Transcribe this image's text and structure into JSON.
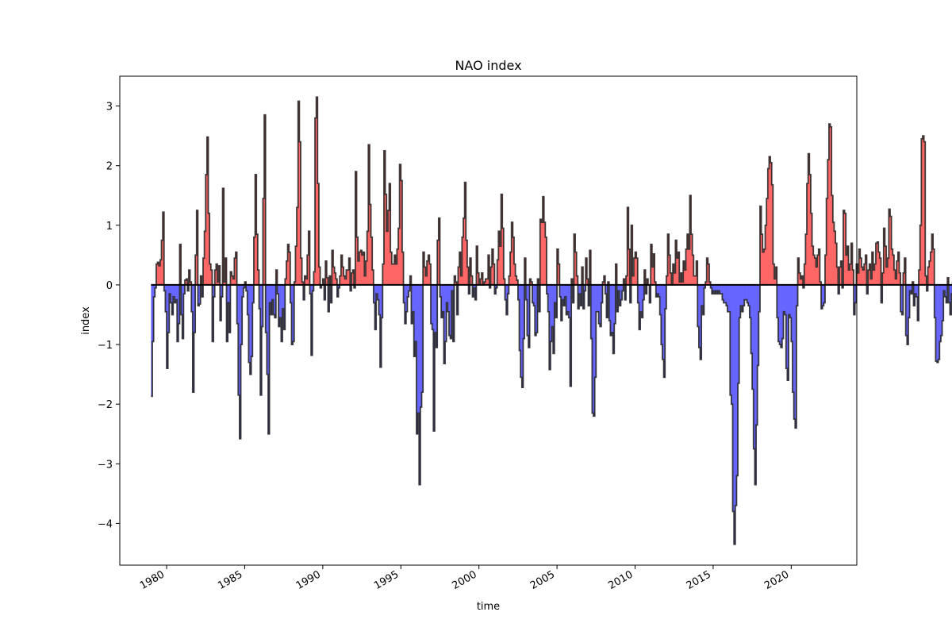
{
  "chart_data": {
    "type": "area",
    "title": "NAO index",
    "xlabel": "time",
    "ylabel": "index",
    "x_start": "1979-01",
    "x_end": "2021-12",
    "xlim": [
      1977.0,
      2024.2
    ],
    "ylim": [
      -4.7,
      3.5
    ],
    "x_ticks": [
      1980,
      1985,
      1990,
      1995,
      2000,
      2005,
      2010,
      2015,
      2020
    ],
    "x_tick_labels": [
      "1980",
      "1985",
      "1990",
      "1995",
      "2000",
      "2005",
      "2010",
      "2015",
      "2020"
    ],
    "y_ticks": [
      -4,
      -3,
      -2,
      -1,
      0,
      1,
      2,
      3
    ],
    "y_tick_labels": [
      "−4",
      "−3",
      "−2",
      "−1",
      "0",
      "1",
      "2",
      "3"
    ],
    "grid": false,
    "legend": false,
    "positive_color": "#ff6666",
    "negative_color": "#6666ff",
    "line_color": "#222222",
    "monthly_values": [
      -1.87,
      -0.95,
      -0.2,
      -0.05,
      0.35,
      0.38,
      0.32,
      0.42,
      0.75,
      1.22,
      -0.1,
      -0.45,
      -1.4,
      -0.8,
      -0.15,
      -0.3,
      -0.5,
      -0.2,
      -0.3,
      -0.25,
      -0.95,
      -0.65,
      0.68,
      -0.5,
      -0.9,
      -0.15,
      0.08,
      0.1,
      -0.1,
      0.25,
      0.05,
      -0.45,
      -1.8,
      -0.8,
      0.5,
      1.25,
      -0.35,
      -0.32,
      0.15,
      -0.2,
      0.45,
      0.9,
      1.85,
      2.48,
      1.2,
      0.35,
      0.25,
      -0.95,
      -0.2,
      0.25,
      0.35,
      0.05,
      0.32,
      -0.6,
      -0.2,
      1.62,
      0.05,
      0.45,
      -0.95,
      -0.3,
      -0.8,
      0.22,
      0.15,
      0.1,
      0.45,
      0.55,
      -0.65,
      -1.85,
      -2.58,
      -1.0,
      -0.2,
      -0.05,
      0.05,
      -0.1,
      -0.5,
      -1.3,
      -1.5,
      -1.2,
      -0.3,
      0.8,
      1.85,
      0.85,
      0.25,
      -0.4,
      -1.85,
      -0.7,
      1.45,
      2.85,
      -0.8,
      -1.5,
      -2.5,
      -0.3,
      -0.5,
      -0.25,
      -0.5,
      -0.55,
      0.25,
      -0.15,
      -0.7,
      -0.55,
      -0.95,
      -0.4,
      -0.75,
      0.1,
      0.4,
      0.68,
      0.55,
      -0.3,
      -1.0,
      -0.95,
      0.05,
      0.65,
      1.3,
      3.08,
      2.4,
      0.45,
      0.05,
      -0.25,
      0.15,
      0.1,
      0.5,
      0.9,
      -0.15,
      -1.18,
      -0.1,
      0.22,
      2.8,
      3.15,
      1.7,
      0.3,
      -0.05,
      0.0,
      0.1,
      -0.25,
      0.4,
      0.12,
      -0.45,
      0.15,
      -0.3,
      0.58,
      0.3,
      0.2,
      0.1,
      -0.2,
      -0.05,
      0.15,
      0.5,
      0.3,
      0.15,
      0.1,
      0.25,
      0.25,
      0.45,
      -0.1,
      0.2,
      0.25,
      -0.05,
      1.9,
      0.8,
      0.4,
      0.55,
      0.58,
      0.5,
      0.55,
      0.15,
      0.4,
      0.9,
      2.35,
      1.35,
      0.8,
      0.25,
      -0.3,
      -0.75,
      -0.15,
      -0.25,
      -0.5,
      -1.38,
      -0.55,
      0.35,
      2.25,
      1.52,
      0.9,
      1.25,
      1.7,
      0.55,
      0.35,
      0.35,
      0.5,
      0.35,
      0.6,
      0.95,
      2.02,
      1.75,
      0.55,
      -0.3,
      -0.65,
      -0.45,
      -0.2,
      -0.1,
      0.15,
      -0.65,
      -0.45,
      -1.2,
      -0.95,
      -2.5,
      -2.15,
      -3.35,
      -2.05,
      -1.8,
      0.55,
      0.3,
      0.15,
      0.4,
      0.5,
      0.35,
      -0.65,
      -0.75,
      -2.45,
      -0.8,
      -1.05,
      0.75,
      1.12,
      -0.2,
      -0.55,
      -0.45,
      -1.32,
      -0.95,
      -0.3,
      -0.45,
      -0.85,
      -0.9,
      -0.1,
      -0.95,
      0.15,
      0.05,
      -0.5,
      0.3,
      0.55,
      0.15,
      0.8,
      1.12,
      1.72,
      0.75,
      0.3,
      -0.15,
      0.45,
      0.15,
      -0.2,
      -0.05,
      -0.25,
      0.65,
      0.2,
      0.0,
      0.1,
      0.2,
      0.0,
      0.05,
      0.1,
      0.1,
      0.5,
      -0.05,
      0.3,
      0.6,
      0.35,
      -0.15,
      -0.05,
      0.42,
      0.9,
      0.65,
      1.52,
      0.95,
      0.1,
      -0.25,
      -0.5,
      -0.15,
      0.15,
      0.55,
      1.05,
      0.8,
      0.35,
      0.15,
      0.08,
      -0.25,
      -1.1,
      -1.55,
      -1.72,
      -0.9,
      0.45,
      -0.25,
      -0.85,
      -1.05,
      0.1,
      0.05,
      -0.3,
      -0.35,
      -0.85,
      -0.8,
      0.1,
      -0.45,
      1.1,
      1.05,
      1.48,
      1.05,
      0.8,
      -0.15,
      -0.45,
      -1.42,
      -0.95,
      -0.7,
      -1.15,
      -0.3,
      -0.55,
      0.6,
      0.35,
      -0.2,
      -0.6,
      -0.25,
      -0.35,
      -0.2,
      -0.5,
      -0.45,
      -0.55,
      -1.7,
      0.1,
      -0.3,
      0.85,
      0.55,
      0.15,
      -0.4,
      -0.15,
      -0.35,
      0.3,
      -0.4,
      -0.1,
      0.45,
      0.1,
      -0.35,
      0.58,
      -0.9,
      -2.15,
      -2.2,
      -1.55,
      -0.45,
      -0.45,
      -0.65,
      -0.7,
      -0.3,
      0.05,
      0.15,
      -0.15,
      -0.55,
      0.05,
      -0.6,
      -0.85,
      -0.8,
      -1.15,
      -0.65,
      0.35,
      -0.45,
      -0.1,
      -0.35,
      -0.25,
      -0.1,
      0.1,
      -0.25,
      0.15,
      1.3,
      0.6,
      -0.3,
      1.0,
      0.15,
      0.45,
      0.55,
      0.45,
      -0.3,
      -0.75,
      -0.45,
      -0.55,
      -0.25,
      0.25,
      -0.15,
      0.1,
      0.0,
      -0.3,
      0.68,
      0.3,
      0.52,
      0.05,
      -0.2,
      -0.15,
      -0.2,
      -0.5,
      -1.0,
      -1.25,
      -1.55,
      -0.4,
      0.15,
      0.85,
      0.5,
      0.2,
      0.0,
      0.35,
      0.2,
      0.75,
      0.45,
      0.55,
      0.05,
      0.2,
      0.05,
      0.4,
      0.25,
      0.6,
      0.85,
      0.6,
      1.5,
      0.85,
      0.5,
      0.15,
      0.15,
      0.4,
      -0.7,
      -1.05,
      -1.25,
      -0.35,
      -0.5,
      -0.05,
      0.05,
      0.45,
      0.35,
      0.05,
      -0.05,
      -0.15,
      -0.1,
      -0.15,
      -0.1,
      -0.15,
      -0.1,
      -0.15,
      -0.15,
      -0.25,
      -0.3,
      -0.3,
      -0.35,
      -0.45,
      -0.45,
      -1.85,
      -2.0,
      -3.8,
      -4.35,
      -3.7,
      -3.2,
      -1.65,
      -0.55,
      -0.35,
      -0.45,
      -0.35,
      -0.25,
      -0.25,
      -0.3,
      -0.35,
      -0.55,
      -1.15,
      -1.75,
      -2.75,
      -3.35,
      -2.35,
      -1.35,
      -0.45,
      1.32,
      0.85,
      0.55,
      0.6,
      1.0,
      1.45,
      1.95,
      2.15,
      2.05,
      1.68,
      0.35,
      0.1,
      0.3,
      -0.55,
      -0.95,
      -1.0,
      -1.05,
      -0.9,
      -0.45,
      -0.5,
      -1.4,
      -1.6,
      -0.5,
      -0.55,
      -0.95,
      -1.8,
      -2.25,
      -2.4,
      -0.35,
      0.45,
      0.2,
      0.1,
      0.15,
      -0.05,
      0.35,
      0.85,
      1.7,
      2.2,
      1.85,
      1.2,
      0.65,
      0.5,
      0.45,
      0.3,
      0.5,
      0.6,
      0.05,
      -0.4,
      -0.35,
      -0.3,
      0.5,
      1.45,
      2.1,
      2.7,
      2.65,
      1.5,
      1.05,
      0.9,
      0.7,
      0.3,
      -0.15,
      0.3,
      0.4,
      -0.05,
      1.25,
      1.2,
      0.5,
      0.65,
      0.25,
      0.35,
      0.7,
      0.25,
      -0.5,
      -0.3,
      0.35,
      0.2,
      0.6,
      0.45,
      0.3,
      0.25,
      0.35,
      0.5,
      -0.15,
      0.25,
      0.35,
      0.1,
      0.55,
      0.25,
      0.35,
      0.7,
      0.72,
      0.55,
      0.45,
      -0.3,
      0.2,
      0.95,
      0.65,
      0.3,
      0.45,
      1.27,
      1.15,
      0.6,
      0.5,
      0.25,
      0.1,
      0.4,
      0.55,
      0.2,
      -0.45,
      -0.5,
      0.2,
      0.45,
      -0.85,
      -1.0,
      -0.55,
      -0.1,
      -0.15,
      0.05,
      -0.35,
      -0.15,
      -0.2,
      -0.6,
      0.25,
      1.0,
      2.45,
      2.5,
      2.4,
      0.15,
      -0.1,
      0.3,
      0.4,
      0.55,
      0.85,
      0.6,
      -0.55,
      -1.28,
      -1.3,
      -1.25,
      -0.95,
      -0.85,
      -0.6,
      -0.1,
      -0.2,
      -0.3,
      0.12,
      -0.3,
      -0.5,
      -0.15,
      0.05,
      0.3,
      0.15,
      -0.2,
      0.0,
      0.05,
      0.1,
      0.0
    ]
  }
}
